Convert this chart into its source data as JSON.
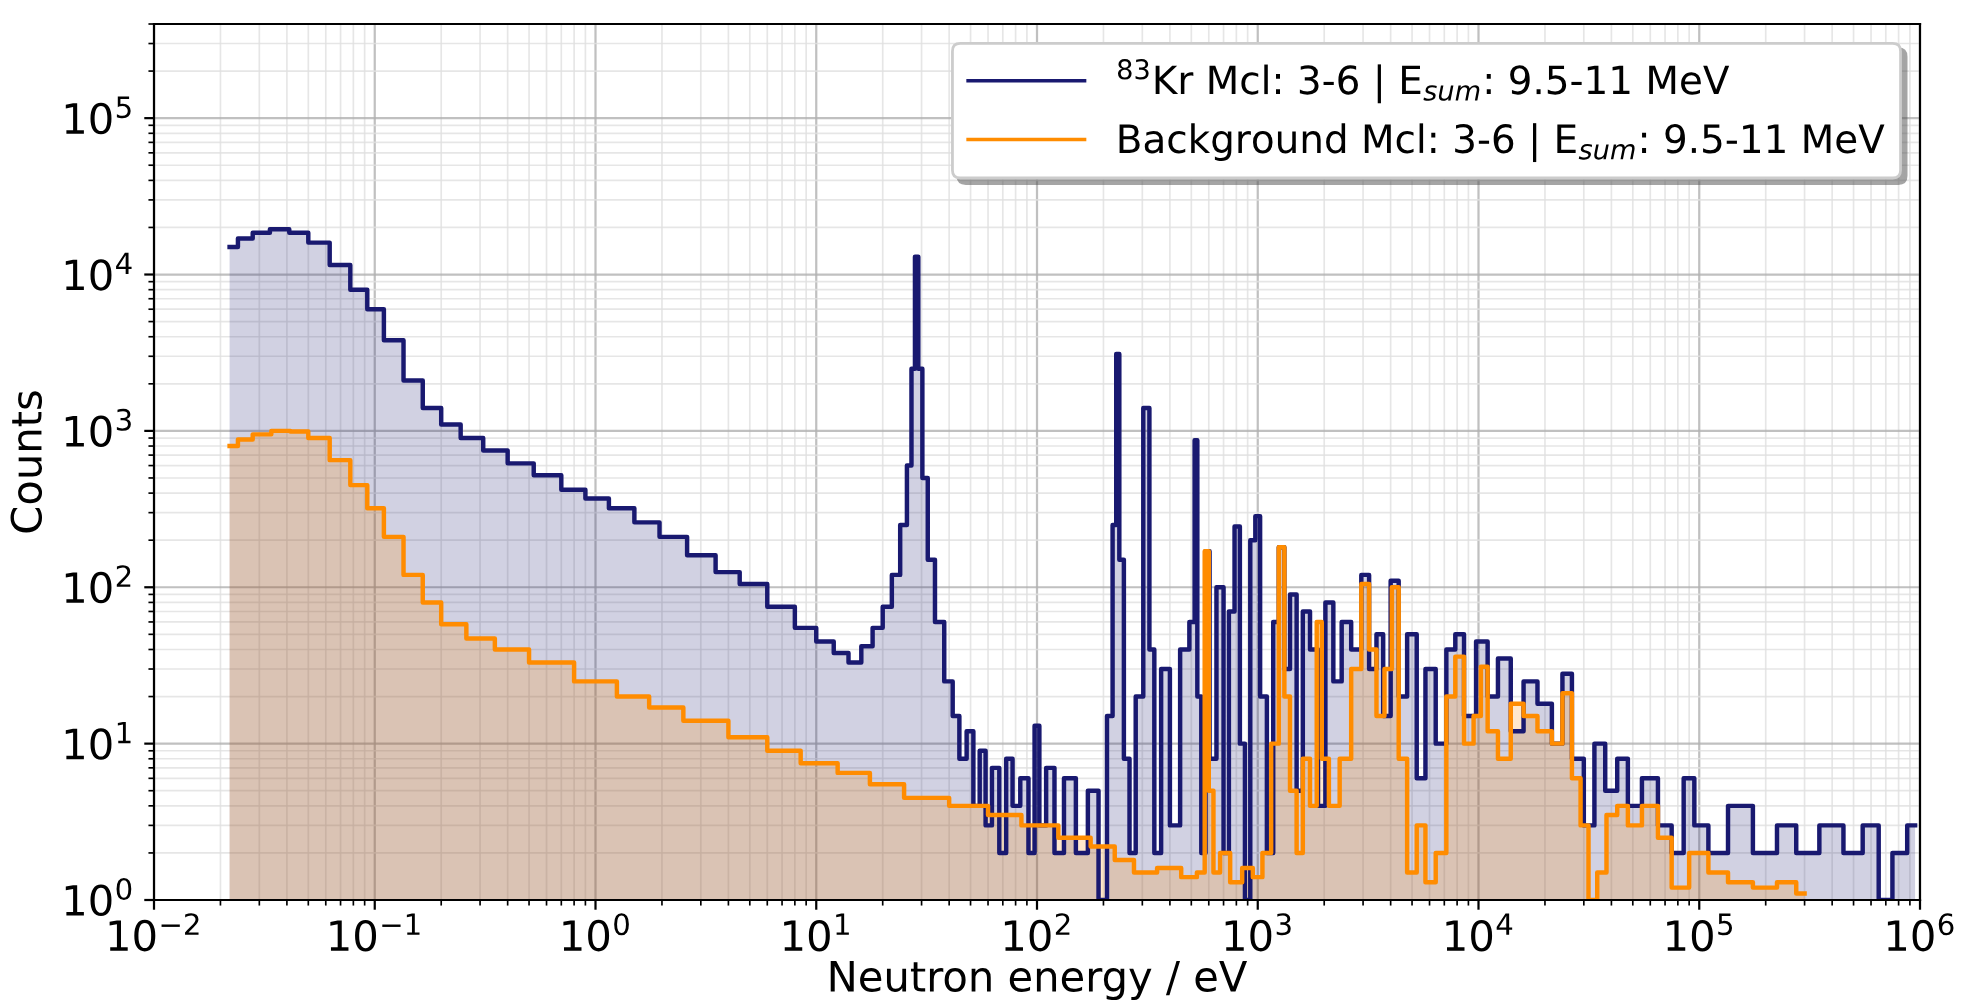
{
  "chart_data": {
    "type": "area",
    "xlabel": "Neutron energy / eV",
    "ylabel": "Counts",
    "log": "xy",
    "grid": true,
    "legend": "top right",
    "xlim": [
      0.01,
      1000000
    ],
    "ylim": [
      1,
      400000
    ],
    "xticks": [
      {
        "value": 0.01,
        "label": "10$^{−2}$"
      },
      {
        "value": 0.1,
        "label": "10$^{−1}$"
      },
      {
        "value": 1,
        "label": "10$^{0}$"
      },
      {
        "value": 10,
        "label": "10$^{1}$"
      },
      {
        "value": 100,
        "label": "10$^{2}$"
      },
      {
        "value": 1000,
        "label": "10$^{3}$"
      },
      {
        "value": 10000,
        "label": "10$^{4}$"
      },
      {
        "value": 100000,
        "label": "10$^{5}$"
      },
      {
        "value": 1000000,
        "label": "10$^{6}$"
      }
    ],
    "yticks": [
      {
        "value": 1,
        "label": "10$^{0}$"
      },
      {
        "value": 10,
        "label": "10$^{1}$"
      },
      {
        "value": 100,
        "label": "10$^{2}$"
      },
      {
        "value": 1000,
        "label": "10$^{3}$"
      },
      {
        "value": 10000,
        "label": "10$^{4}$"
      },
      {
        "value": 100000,
        "label": "10$^{5}$"
      }
    ],
    "series": [
      {
        "name": "$^{83}$Kr Mcl: 3-6 | E$_{sum}$: 9.5-11 MeV",
        "color": "#191970",
        "x": [
          0.022,
          0.026,
          0.03,
          0.037,
          0.045,
          0.055,
          0.07,
          0.085,
          0.1,
          0.12,
          0.15,
          0.18,
          0.22,
          0.27,
          0.35,
          0.45,
          0.6,
          0.8,
          1,
          1.3,
          1.7,
          2.2,
          3,
          4,
          5,
          7,
          9,
          11,
          13,
          15,
          17,
          19,
          21,
          23,
          25,
          26.5,
          27.5,
          28.5,
          29.5,
          31,
          33,
          36,
          40,
          43,
          46,
          50,
          53,
          57,
          60,
          65,
          70,
          75,
          80,
          88,
          95,
          100,
          105,
          115,
          125,
          140,
          160,
          180,
          200,
          215,
          225,
          232,
          240,
          255,
          270,
          290,
          316,
          330,
          350,
          380,
          420,
          470,
          510,
          525,
          540,
          570,
          590,
          620,
          680,
          720,
          760,
          810,
          850,
          900,
          950,
          1000,
          1050,
          1150,
          1200,
          1290,
          1350,
          1450,
          1550,
          1650,
          1800,
          1950,
          2100,
          2300,
          2500,
          2800,
          3090,
          3300,
          3600,
          3800,
          4200,
          4500,
          5000,
          5500,
          6000,
          6800,
          7500,
          8200,
          9000,
          10500,
          11500,
          13000,
          15000,
          17000,
          20000,
          23000,
          25000,
          28000,
          32000,
          35000,
          40000,
          45000,
          50000,
          60000,
          70000,
          80000,
          90000,
          100000,
          120000,
          150000,
          200000,
          250000,
          300000,
          400000,
          500000,
          600000,
          700000,
          800000,
          950000
        ],
        "values": [
          15000,
          17000,
          18500,
          19500,
          18500,
          16000,
          11500,
          8000,
          6000,
          3800,
          2100,
          1400,
          1100,
          900,
          750,
          620,
          520,
          420,
          370,
          320,
          260,
          210,
          160,
          125,
          105,
          75,
          55,
          45,
          38,
          33,
          42,
          55,
          75,
          120,
          250,
          600,
          2500,
          13000,
          2500,
          500,
          150,
          60,
          25,
          15,
          8,
          12,
          4,
          9,
          3,
          7,
          2,
          8,
          4,
          6,
          2,
          13,
          3,
          7,
          2,
          6,
          2,
          5,
          1,
          15,
          250,
          3100,
          150,
          8,
          2,
          20,
          1400,
          40,
          2,
          30,
          3,
          40,
          60,
          870,
          20,
          2,
          170,
          8,
          100,
          2,
          70,
          245,
          10,
          1,
          200,
          285,
          20,
          2,
          60,
          180,
          30,
          90,
          5,
          70,
          40,
          4,
          80,
          25,
          60,
          40,
          120,
          30,
          50,
          15,
          110,
          20,
          50,
          6,
          30,
          10,
          40,
          50,
          15,
          45,
          20,
          35,
          12,
          25,
          18,
          10,
          28,
          8,
          3,
          10,
          5,
          8,
          4,
          6,
          3,
          2,
          6,
          3,
          2,
          4,
          2,
          3,
          2,
          3,
          2,
          3,
          1,
          2,
          3
        ]
      },
      {
        "name": "Background Mcl: 3-6 | E$_{sum}$: 9.5-11 MeV",
        "color": "#ff8c00",
        "x": [
          0.022,
          0.026,
          0.03,
          0.038,
          0.045,
          0.055,
          0.07,
          0.085,
          0.1,
          0.12,
          0.15,
          0.18,
          0.22,
          0.3,
          0.4,
          0.6,
          1,
          1.5,
          2,
          3,
          5,
          7,
          10,
          15,
          20,
          30,
          50,
          70,
          100,
          150,
          200,
          250,
          300,
          400,
          500,
          560,
          590,
          610,
          650,
          700,
          800,
          900,
          1000,
          1100,
          1200,
          1290,
          1350,
          1450,
          1550,
          1650,
          1800,
          1900,
          2000,
          2200,
          2500,
          2800,
          3090,
          3300,
          3600,
          3900,
          4200,
          4500,
          5000,
          5500,
          6000,
          6800,
          7500,
          8200,
          9000,
          10000,
          10500,
          11500,
          13000,
          15000,
          17000,
          20000,
          23000,
          25000,
          28000,
          30000,
          33000,
          36000,
          40000,
          45000,
          50000,
          60000,
          70000,
          80000,
          100000,
          120000,
          150000,
          200000,
          250000,
          300000
        ],
        "values": [
          800,
          880,
          950,
          1000,
          990,
          900,
          650,
          450,
          320,
          210,
          120,
          80,
          58,
          47,
          40,
          33,
          25,
          20,
          17,
          14,
          11,
          9,
          7.5,
          6.5,
          5.5,
          4.5,
          4,
          3.5,
          3,
          2.5,
          2.2,
          1.8,
          1.5,
          1.6,
          1.4,
          1.5,
          170,
          5,
          1.5,
          2,
          1.3,
          1.6,
          1.4,
          2,
          10,
          180,
          20,
          5,
          2,
          8,
          4,
          60,
          8,
          4,
          8,
          30,
          105,
          40,
          15,
          30,
          100,
          8,
          1.5,
          3,
          1.3,
          2,
          20,
          36,
          10,
          15,
          31,
          12,
          8,
          18,
          15,
          12,
          10,
          21,
          6,
          3,
          1,
          1.5,
          3.5,
          4,
          3,
          4,
          2.5,
          1.2,
          2,
          1.5,
          1.3,
          1.2,
          1.3,
          1.1
        ]
      }
    ]
  }
}
